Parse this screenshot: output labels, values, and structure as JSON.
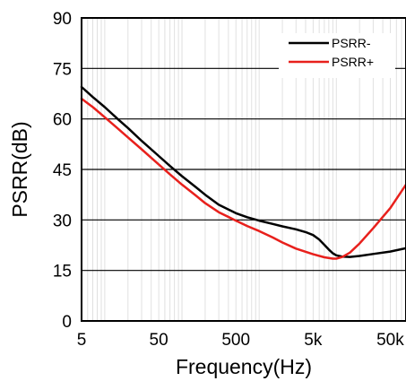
{
  "chart_data": {
    "type": "line",
    "title": "",
    "xlabel": "Frequency(Hz)",
    "ylabel": "PSRR(dB)",
    "x_scale": "log",
    "xlim": [
      5,
      80000
    ],
    "ylim": [
      0,
      90
    ],
    "x_ticks": [
      {
        "value": 5,
        "label": "5"
      },
      {
        "value": 50,
        "label": "50"
      },
      {
        "value": 500,
        "label": "500"
      },
      {
        "value": 5000,
        "label": "5k"
      },
      {
        "value": 50000,
        "label": "50k"
      }
    ],
    "y_ticks": [
      0,
      15,
      30,
      45,
      60,
      75,
      90
    ],
    "grid": {
      "horizontal": true,
      "vertical_minor_log": true
    },
    "legend_position": "top-right",
    "series": [
      {
        "name": "PSRR-",
        "color": "#000000",
        "points": [
          [
            5,
            69.5
          ],
          [
            7,
            66.5
          ],
          [
            10,
            63.5
          ],
          [
            15,
            59.8
          ],
          [
            20,
            57.3
          ],
          [
            30,
            53.5
          ],
          [
            50,
            49
          ],
          [
            70,
            46
          ],
          [
            100,
            43
          ],
          [
            150,
            39.8
          ],
          [
            200,
            37.5
          ],
          [
            300,
            34.5
          ],
          [
            500,
            32
          ],
          [
            700,
            30.8
          ],
          [
            1000,
            29.8
          ],
          [
            1500,
            28.8
          ],
          [
            2000,
            28.1
          ],
          [
            3000,
            27.2
          ],
          [
            4000,
            26.4
          ],
          [
            5000,
            25.5
          ],
          [
            6000,
            24.2
          ],
          [
            7000,
            22.6
          ],
          [
            8000,
            21.2
          ],
          [
            9000,
            20.1
          ],
          [
            10000,
            19.5
          ],
          [
            12000,
            19.1
          ],
          [
            15000,
            19
          ],
          [
            20000,
            19.3
          ],
          [
            30000,
            19.9
          ],
          [
            50000,
            20.6
          ],
          [
            80000,
            21.6
          ]
        ]
      },
      {
        "name": "PSRR+",
        "color": "#e8201c",
        "points": [
          [
            5,
            66
          ],
          [
            7,
            63.5
          ],
          [
            10,
            60.5
          ],
          [
            15,
            57
          ],
          [
            20,
            54.5
          ],
          [
            30,
            51
          ],
          [
            50,
            46.5
          ],
          [
            70,
            43.5
          ],
          [
            100,
            40.5
          ],
          [
            150,
            37.3
          ],
          [
            200,
            35
          ],
          [
            300,
            32.3
          ],
          [
            500,
            29.8
          ],
          [
            700,
            28.2
          ],
          [
            1000,
            26.7
          ],
          [
            1500,
            24.8
          ],
          [
            2000,
            23.3
          ],
          [
            3000,
            21.5
          ],
          [
            5000,
            19.8
          ],
          [
            7000,
            18.9
          ],
          [
            9000,
            18.5
          ],
          [
            10000,
            18.5
          ],
          [
            12000,
            19
          ],
          [
            15000,
            20.3
          ],
          [
            20000,
            23
          ],
          [
            30000,
            27.5
          ],
          [
            50000,
            33.5
          ],
          [
            80000,
            40.5
          ]
        ]
      }
    ]
  }
}
